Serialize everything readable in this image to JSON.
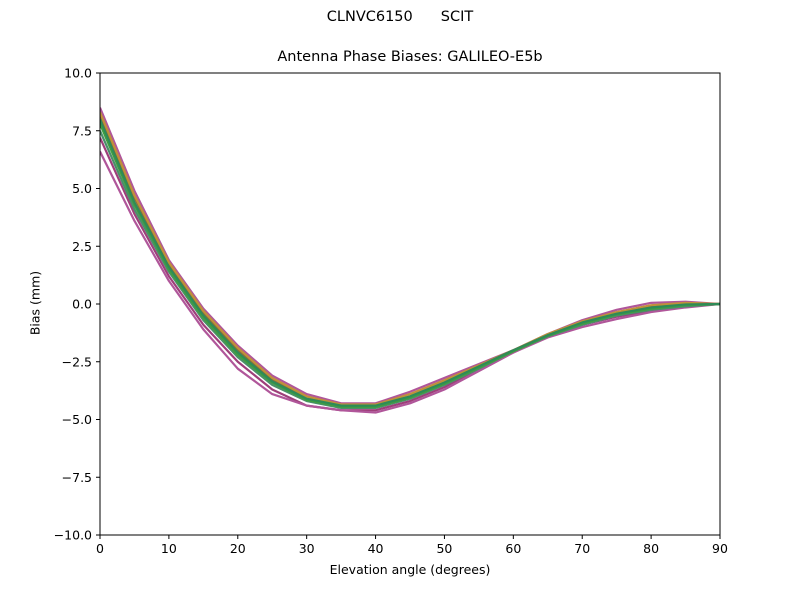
{
  "suptitle": {
    "station": "CLNVC6150",
    "code": "SCIT"
  },
  "chart_data": {
    "type": "line",
    "title": "Antenna Phase Biases: GALILEO-E5b",
    "xlabel": "Elevation angle (degrees)",
    "ylabel": "Bias (mm)",
    "xlim": [
      0,
      90
    ],
    "ylim": [
      -10,
      10
    ],
    "xticks": [
      0,
      10,
      20,
      30,
      40,
      50,
      60,
      70,
      80,
      90
    ],
    "yticks": [
      -10.0,
      -7.5,
      -5.0,
      -2.5,
      0.0,
      2.5,
      5.0,
      7.5,
      10.0
    ],
    "xtick_labels": [
      "0",
      "10",
      "20",
      "30",
      "40",
      "50",
      "60",
      "70",
      "80",
      "90"
    ],
    "ytick_labels": [
      "−10.0",
      "−7.5",
      "−5.0",
      "−2.5",
      "0.0",
      "2.5",
      "5.0",
      "7.5",
      "10.0"
    ],
    "grid": false,
    "x": [
      0,
      5,
      10,
      15,
      20,
      25,
      30,
      35,
      40,
      45,
      50,
      55,
      60,
      65,
      70,
      75,
      80,
      85,
      90
    ],
    "series": [
      {
        "color": "#b0569a",
        "values": [
          8.5,
          4.9,
          1.9,
          -0.2,
          -1.8,
          -3.1,
          -3.9,
          -4.3,
          -4.3,
          -3.8,
          -3.2,
          -2.6,
          -2.0,
          -1.3,
          -0.7,
          -0.25,
          0.05,
          0.1,
          0.0
        ]
      },
      {
        "color": "#9e3f7a",
        "values": [
          7.2,
          3.9,
          1.2,
          -0.9,
          -2.5,
          -3.7,
          -4.4,
          -4.6,
          -4.6,
          -4.2,
          -3.6,
          -2.8,
          -2.1,
          -1.4,
          -0.9,
          -0.55,
          -0.3,
          -0.1,
          0.0
        ]
      },
      {
        "color": "#b0569a",
        "values": [
          6.6,
          3.6,
          1.0,
          -1.1,
          -2.8,
          -3.9,
          -4.4,
          -4.6,
          -4.7,
          -4.3,
          -3.7,
          -2.9,
          -2.1,
          -1.45,
          -1.0,
          -0.65,
          -0.35,
          -0.15,
          0.0
        ]
      },
      {
        "color": "#8a6d3b",
        "values": [
          8.2,
          4.6,
          1.7,
          -0.4,
          -2.0,
          -3.3,
          -4.0,
          -4.4,
          -4.4,
          -4.0,
          -3.4,
          -2.7,
          -2.0,
          -1.35,
          -0.8,
          -0.4,
          -0.1,
          0.0,
          0.0
        ]
      },
      {
        "color": "#c0903a",
        "values": [
          8.3,
          4.7,
          1.8,
          -0.3,
          -1.9,
          -3.2,
          -4.0,
          -4.35,
          -4.35,
          -3.9,
          -3.3,
          -2.65,
          -2.0,
          -1.3,
          -0.75,
          -0.35,
          -0.05,
          0.05,
          0.0
        ]
      },
      {
        "color": "#4a8f6a",
        "values": [
          7.5,
          4.1,
          1.4,
          -0.7,
          -2.3,
          -3.5,
          -4.2,
          -4.5,
          -4.5,
          -4.1,
          -3.5,
          -2.8,
          -2.05,
          -1.4,
          -0.9,
          -0.5,
          -0.25,
          -0.1,
          0.0
        ]
      },
      {
        "color": "#3f9f3f",
        "values": [
          7.8,
          4.3,
          1.5,
          -0.6,
          -2.2,
          -3.4,
          -4.15,
          -4.45,
          -4.45,
          -4.05,
          -3.45,
          -2.75,
          -2.05,
          -1.38,
          -0.85,
          -0.45,
          -0.2,
          -0.05,
          0.0
        ]
      },
      {
        "color": "#2e8b57",
        "values": [
          8.0,
          4.4,
          1.6,
          -0.5,
          -2.1,
          -3.35,
          -4.1,
          -4.4,
          -4.4,
          -4.0,
          -3.4,
          -2.7,
          -2.0,
          -1.35,
          -0.8,
          -0.42,
          -0.15,
          -0.02,
          0.0
        ]
      }
    ]
  }
}
